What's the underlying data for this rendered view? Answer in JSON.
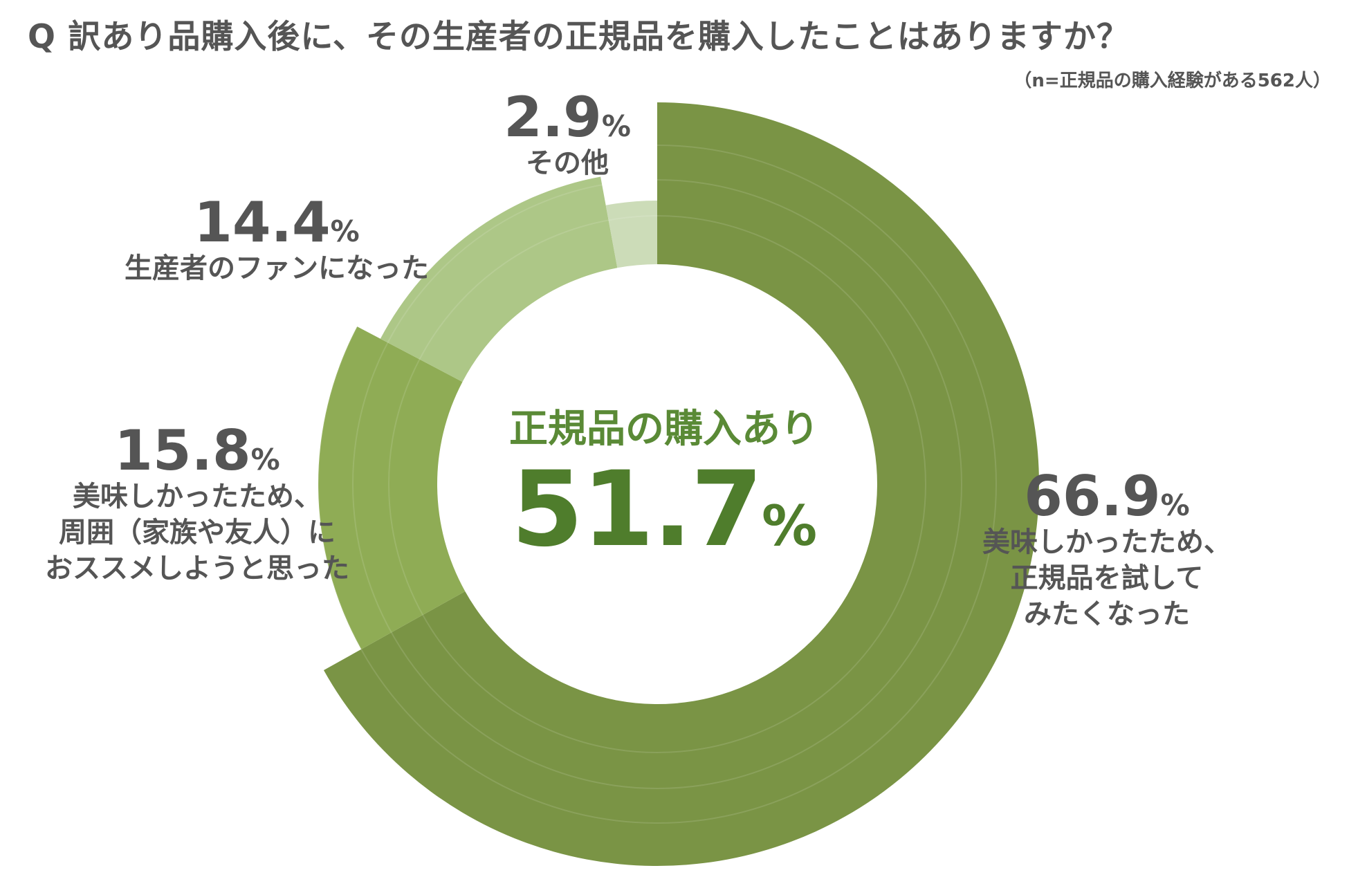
{
  "title": "Q 訳あり品購入後に、その生産者の正規品を購入したことはありますか？",
  "note": "（n=正規品の購入経験がある562人）",
  "center": {
    "label": "正規品の購入あり",
    "value": "51.7",
    "unit": "%"
  },
  "colors": {
    "background": "#ffffff",
    "text": "#555555",
    "accent": "#5a8a36"
  },
  "chart_data": {
    "type": "pie",
    "title": "Q 訳あり品購入後に、その生産者の正規品を購入したことはありますか？",
    "center_text": "正規品の購入あり 51.7%",
    "unit": "%",
    "slices": [
      {
        "label": "美味しかったため、正規品を試してみたくなった",
        "lines": [
          "美味しかったため、",
          "正規品を試して",
          "みたくなった"
        ],
        "value": 66.9,
        "display": "66.9",
        "color": "#7a9445"
      },
      {
        "label": "美味しかったため、周囲（家族や友人）におススメしようと思った",
        "lines": [
          "美味しかったため、",
          "周囲（家族や友人）に",
          "おススメしようと思った"
        ],
        "value": 15.8,
        "display": "15.8",
        "color": "#8fac55"
      },
      {
        "label": "生産者のファンになった",
        "lines": [
          "生産者のファンになった"
        ],
        "value": 14.4,
        "display": "14.4",
        "color": "#adc787"
      },
      {
        "label": "その他",
        "lines": [
          "その他"
        ],
        "value": 2.9,
        "display": "2.9",
        "color": "#ccdcb8"
      }
    ]
  }
}
